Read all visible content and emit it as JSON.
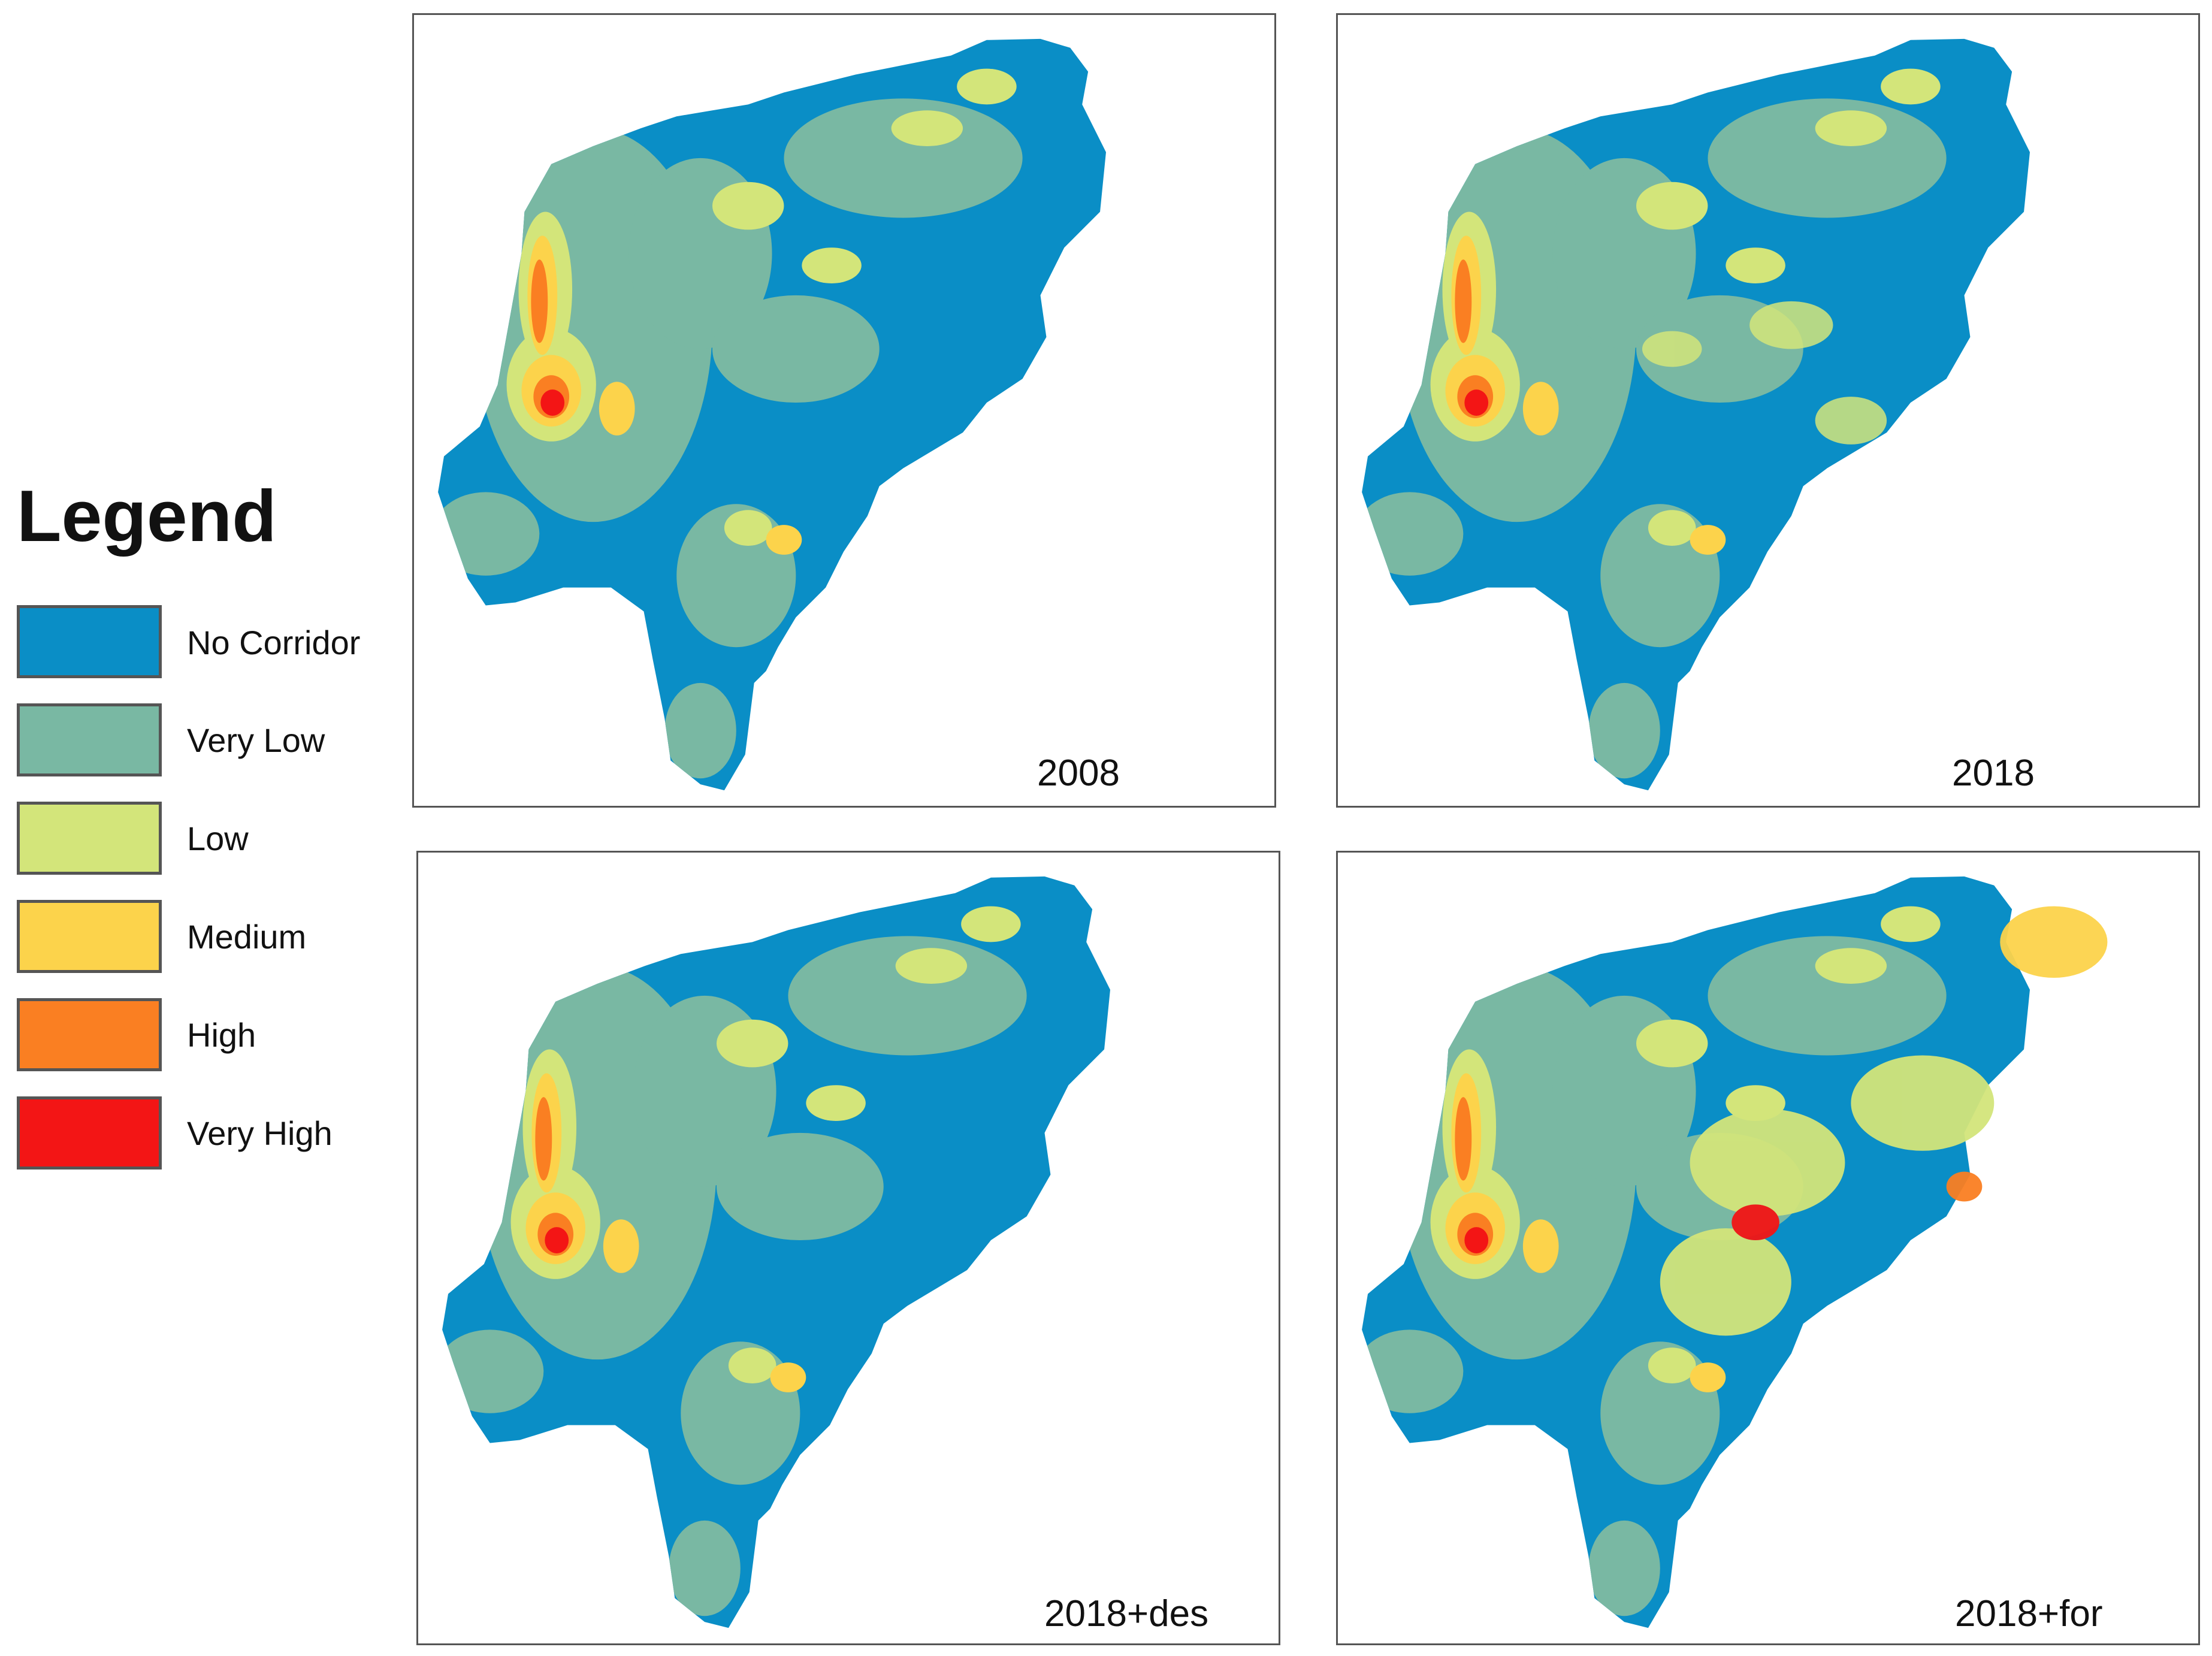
{
  "legend": {
    "title": "Legend",
    "items": [
      {
        "label": "No Corridor",
        "color": "#0a8ec6"
      },
      {
        "label": "Very Low",
        "color": "#79b8a3"
      },
      {
        "label": "Low",
        "color": "#d3e57a"
      },
      {
        "label": "Medium",
        "color": "#fcd34b"
      },
      {
        "label": "High",
        "color": "#fa7f22"
      },
      {
        "label": "Very High",
        "color": "#f31515"
      }
    ]
  },
  "panels": [
    {
      "label": "2008"
    },
    {
      "label": "2018"
    },
    {
      "label": "2018+des"
    },
    {
      "label": "2018+for"
    }
  ]
}
